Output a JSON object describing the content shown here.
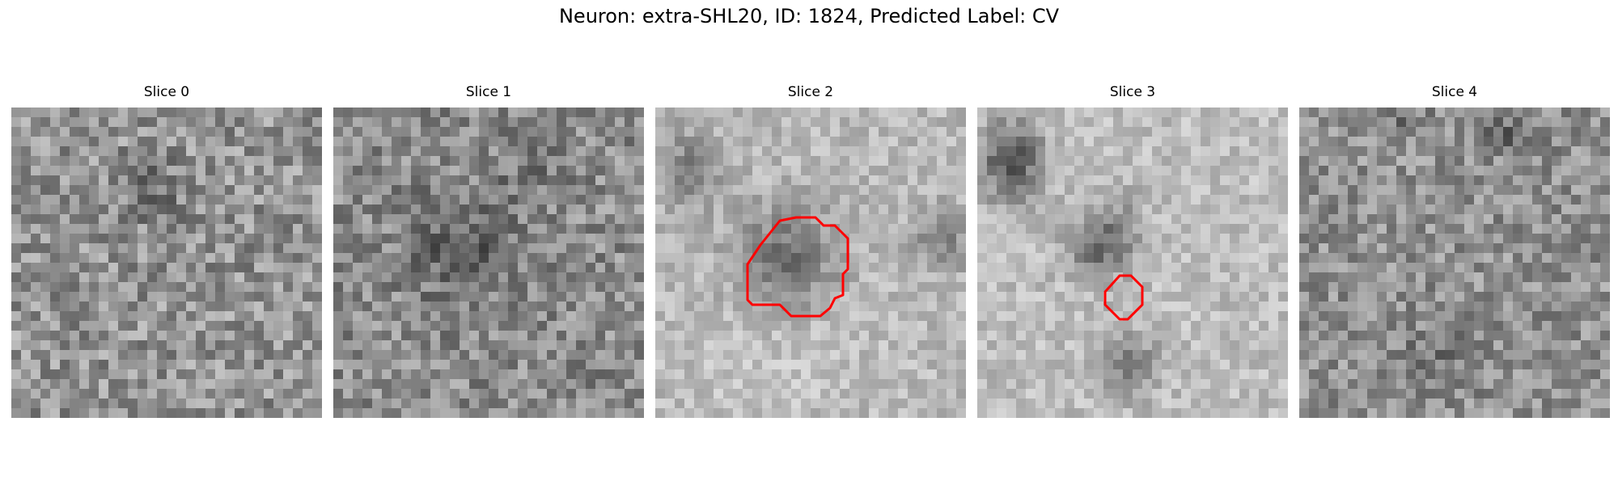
{
  "figure": {
    "title": "Neuron: extra-SHL20, ID: 1824, Predicted Label: CV"
  },
  "colors": {
    "contour": "#ff0000",
    "background": "#ffffff"
  },
  "slices": [
    {
      "label": "Slice 0",
      "has_contour": false
    },
    {
      "label": "Slice 1",
      "has_contour": false
    },
    {
      "label": "Slice 2",
      "has_contour": true
    },
    {
      "label": "Slice 3",
      "has_contour": true
    },
    {
      "label": "Slice 4",
      "has_contour": false
    }
  ]
}
